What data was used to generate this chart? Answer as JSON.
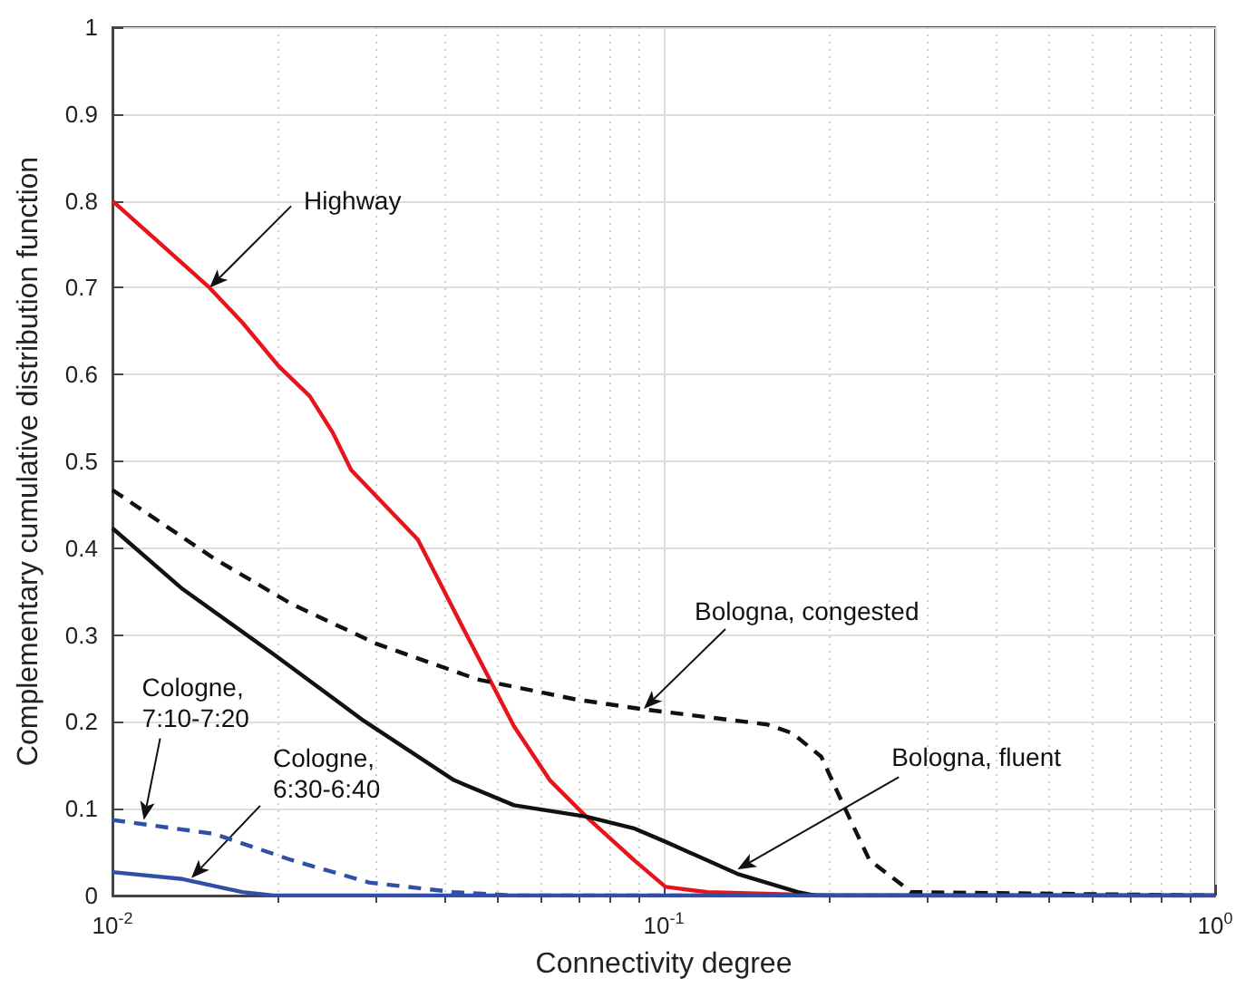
{
  "chart_data": {
    "type": "line",
    "xlabel": "Connectivity degree",
    "ylabel": "Complementary cumulative distribution function",
    "log": "x",
    "xlim": [
      0.01,
      1
    ],
    "ylim": [
      0,
      1
    ],
    "xticks": [
      {
        "value": 0.01,
        "label": "10$^{-2}$"
      },
      {
        "value": 0.02,
        "label": null
      },
      {
        "value": 0.03,
        "label": null
      },
      {
        "value": 0.04,
        "label": null
      },
      {
        "value": 0.05,
        "label": null
      },
      {
        "value": 0.06,
        "label": null
      },
      {
        "value": 0.07,
        "label": null
      },
      {
        "value": 0.08,
        "label": null
      },
      {
        "value": 0.09,
        "label": null
      },
      {
        "value": 0.1,
        "label": "10$^{-1}$"
      },
      {
        "value": 0.2,
        "label": null
      },
      {
        "value": 0.3,
        "label": null
      },
      {
        "value": 0.4,
        "label": null
      },
      {
        "value": 0.5,
        "label": null
      },
      {
        "value": 0.6,
        "label": null
      },
      {
        "value": 0.7,
        "label": null
      },
      {
        "value": 0.8,
        "label": null
      },
      {
        "value": 0.9,
        "label": null
      },
      {
        "value": 1,
        "label": "10$^{0}$"
      }
    ],
    "yticks": [
      0,
      0.1,
      0.2,
      0.3,
      0.4,
      0.5,
      0.6,
      0.7,
      0.8,
      0.9,
      1
    ],
    "grid": true,
    "marker": "none",
    "series": [
      {
        "color": "#e8141c",
        "line_style": "solid",
        "x": [
          0.01,
          0.012,
          0.015,
          0.0172,
          0.02,
          0.0228,
          0.0251,
          0.0271,
          0.0358,
          0.0439,
          0.0535,
          0.0621,
          0.0723,
          0.0886,
          0.1007,
          0.12,
          0.2,
          1
        ],
        "values": [
          0.8,
          0.755,
          0.7,
          0.66,
          0.61,
          0.575,
          0.533,
          0.49,
          0.41,
          0.3,
          0.195,
          0.133,
          0.091,
          0.04,
          0.01,
          0.004,
          0,
          0
        ]
      },
      {
        "color": "#111111",
        "line_style": "dashed",
        "x": [
          0.01,
          0.0153,
          0.0211,
          0.0301,
          0.0459,
          0.0691,
          0.0906,
          0.154,
          0.171,
          0.193,
          0.214,
          0.236,
          0.281,
          1
        ],
        "values": [
          0.467,
          0.388,
          0.336,
          0.29,
          0.249,
          0.226,
          0.215,
          0.197,
          0.187,
          0.16,
          0.098,
          0.041,
          0.004,
          0
        ]
      },
      {
        "color": "#111111",
        "line_style": "solid",
        "x": [
          0.01,
          0.0134,
          0.0196,
          0.0286,
          0.0416,
          0.0535,
          0.0723,
          0.0886,
          0.1007,
          0.136,
          0.175,
          0.188,
          1
        ],
        "values": [
          0.423,
          0.353,
          0.278,
          0.201,
          0.133,
          0.104,
          0.091,
          0.077,
          0.062,
          0.025,
          0.004,
          0,
          0
        ]
      },
      {
        "color": "#3050a8",
        "line_style": "dashed",
        "x": [
          0.01,
          0.0153,
          0.0211,
          0.0292,
          0.0416,
          0.0535,
          1
        ],
        "values": [
          0.087,
          0.071,
          0.041,
          0.015,
          0.004,
          0,
          0
        ]
      },
      {
        "color": "#3050a8",
        "line_style": "solid",
        "x": [
          0.01,
          0.0134,
          0.0172,
          0.0196,
          1
        ],
        "values": [
          0.027,
          0.019,
          0.004,
          0,
          0
        ]
      }
    ],
    "annotations": [
      {
        "text": "Highway",
        "x": 0.015,
        "y": 0.7
      },
      {
        "text": "Bologna, congested",
        "x": 0.092,
        "y": 0.215
      },
      {
        "text": "Bologna, fluent",
        "x": 0.136,
        "y": 0.03
      },
      {
        "text": "Cologne,\n7:10-7:20",
        "x": 0.0114,
        "y": 0.087
      },
      {
        "text": "Cologne,\n6:30-6:40",
        "x": 0.0139,
        "y": 0.02
      }
    ]
  }
}
